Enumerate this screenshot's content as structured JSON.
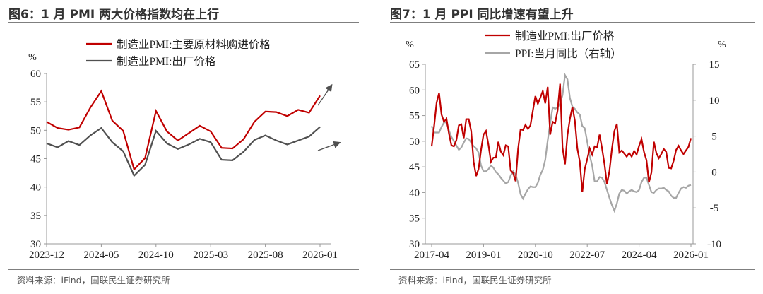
{
  "charts_header": {
    "left_title": "图6：1 月 PMI 两大价格指数均在上行",
    "right_title": "图7：1 月 PPI 同比增速有望上升",
    "left_source": "资料来源：iFind，国联民生证券研究所",
    "right_source": "资料来源：iFind，国联民生证券研究所"
  },
  "colors": {
    "red": "#c00000",
    "dark_gray": "#505050",
    "light_gray": "#a6a6a6"
  },
  "chart_data": [
    {
      "type": "line",
      "unit_label": "%",
      "x_start": "2023-12",
      "x_end": "2026-01",
      "x_frequency": "monthly",
      "xticks": [
        "2023-12",
        "2024-05",
        "2024-10",
        "2025-03",
        "2025-08",
        "2026-01"
      ],
      "ylim": [
        30,
        60
      ],
      "yticks": [
        30,
        35,
        40,
        45,
        50,
        55,
        60
      ],
      "grid": false,
      "legend_position": "top",
      "annotations": [
        "upward arrow near red series end",
        "upward arrow near gray series end"
      ],
      "series": [
        {
          "name": "制造业PMI:主要原材料购进价格",
          "color": "#c00000",
          "values": [
            51.5,
            50.4,
            50.1,
            50.5,
            54.0,
            56.9,
            51.7,
            49.9,
            43.1,
            45.1,
            53.4,
            49.8,
            48.2,
            49.5,
            50.8,
            49.8,
            46.9,
            46.8,
            48.4,
            51.5,
            53.3,
            53.2,
            52.5,
            53.6,
            53.1,
            56.1
          ]
        },
        {
          "name": "制造业PMI:出厂价格",
          "color": "#505050",
          "values": [
            47.7,
            47.0,
            48.1,
            47.4,
            49.1,
            50.4,
            47.9,
            46.3,
            42.0,
            43.9,
            49.9,
            47.7,
            46.7,
            47.5,
            48.5,
            47.9,
            44.8,
            44.7,
            46.2,
            48.3,
            49.1,
            48.2,
            47.5,
            48.2,
            48.9,
            50.6
          ]
        }
      ]
    },
    {
      "type": "line",
      "left_unit_label": "%",
      "right_unit_label": "%",
      "x_start": "2017-04",
      "x_end": "2026-01",
      "x_frequency": "monthly",
      "xticks": [
        "2017-04",
        "2019-01",
        "2020-10",
        "2022-07",
        "2024-04",
        "2026-01"
      ],
      "ylim_left": [
        30,
        65
      ],
      "yticks_left": [
        30,
        35,
        40,
        45,
        50,
        55,
        60,
        65
      ],
      "ylim_right": [
        -10,
        15
      ],
      "yticks_right": [
        -10,
        -5,
        0,
        5,
        10,
        15
      ],
      "grid": false,
      "legend_position": "top",
      "series": [
        {
          "name": "制造业PMI:出厂价格",
          "color": "#c00000",
          "axis": "left",
          "values": [
            49,
            53,
            57.5,
            59.4,
            55.2,
            53.8,
            54.4,
            51.5,
            49.2,
            49,
            50.2,
            53.1,
            53.3,
            50.6,
            54.3,
            54.3,
            52,
            46,
            43.2,
            44.6,
            48.3,
            51.3,
            52,
            49.3,
            46,
            46.8,
            46.8,
            49.9,
            48,
            47.3,
            49.2,
            49,
            44.3,
            43.8,
            42.2,
            48.5,
            52.3,
            52.2,
            53.2,
            52.4,
            53.1,
            56,
            58.8,
            57.3,
            58.5,
            59.8,
            57.4,
            60.6,
            51.3,
            53.8,
            53.5,
            56,
            61.2,
            48.8,
            45.5,
            51.2,
            54.4,
            56.7,
            54,
            48.6,
            46,
            40.1,
            44.6,
            46.5,
            48.6,
            47.4,
            49,
            48.8,
            51.3,
            48.6,
            45.5,
            41.6,
            44.2,
            48.5,
            52,
            53.4,
            47.8,
            48.2,
            47.6,
            47,
            47.7,
            47.0,
            48.1,
            47.4,
            49.1,
            50.4,
            47.9,
            46.3,
            42.0,
            43.9,
            49.9,
            47.7,
            46.7,
            47.5,
            48.5,
            47.9,
            44.8,
            44.7,
            46.2,
            48.3,
            49.1,
            48.2,
            47.5,
            48.2,
            48.9,
            50.6
          ]
        },
        {
          "name": "PPI:当月同比（右轴）",
          "color": "#a6a6a6",
          "axis": "right",
          "values": [
            6.4,
            5.5,
            5.5,
            5.5,
            6.3,
            6.9,
            6.9,
            5.8,
            4.9,
            4.3,
            3.7,
            3.1,
            3.4,
            4.1,
            4.7,
            4.6,
            4.1,
            3.6,
            3.3,
            2.7,
            0.9,
            0.1,
            0.1,
            0.4,
            0.9,
            0.6,
            0.0,
            -0.3,
            -0.8,
            -1.2,
            -1.6,
            -1.4,
            -0.5,
            0.1,
            -0.4,
            -1.5,
            -3.1,
            -3.7,
            -3.0,
            -2.4,
            -2.0,
            -2.1,
            -2.1,
            -1.5,
            -0.4,
            0.3,
            1.7,
            4.4,
            6.8,
            9.0,
            8.8,
            9.0,
            9.5,
            10.7,
            13.5,
            12.9,
            10.3,
            9.1,
            8.8,
            8.3,
            8.0,
            6.4,
            6.1,
            4.2,
            2.3,
            0.9,
            -1.3,
            -1.3,
            -0.7,
            -0.8,
            -1.4,
            -2.5,
            -3.6,
            -4.6,
            -5.4,
            -4.4,
            -3.0,
            -2.5,
            -2.6,
            -3.0,
            -2.7,
            -2.5,
            -2.7,
            -2.8,
            -2.5,
            -1.4,
            -0.8,
            -0.8,
            -1.8,
            -2.8,
            -2.9,
            -2.5,
            -2.3,
            -2.3,
            -2.2,
            -2.5,
            -2.7,
            -3.3,
            -3.6,
            -3.6,
            -2.9,
            -2.3,
            -2.1,
            -2.2,
            -1.9,
            -1.8
          ]
        }
      ]
    }
  ]
}
